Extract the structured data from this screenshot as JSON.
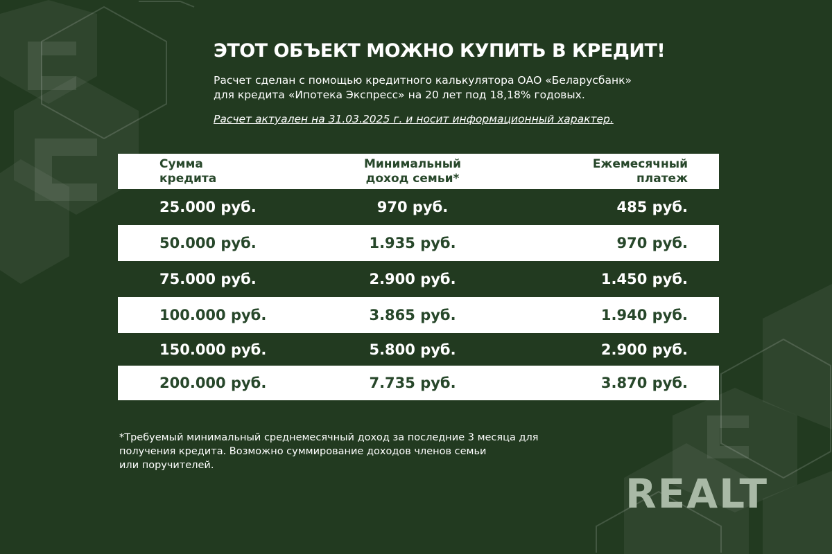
{
  "header": {
    "title": "ЭТОТ ОБЪЕКТ МОЖНО КУПИТЬ В КРЕДИТ!",
    "subtitle_line1": "Расчет сделан с помощью кредитного калькулятора ОАО «Беларусбанк»",
    "subtitle_line2": "для кредита «Ипотека Экспресс» на 20 лет под 18,18% годовых.",
    "note": "Расчет актуален на 31.03.2025 г. и носит информационный характер."
  },
  "table": {
    "columns": [
      {
        "line1": "Сумма",
        "line2": "кредита"
      },
      {
        "line1": "Минимальный",
        "line2": "доход семьи*"
      },
      {
        "line1": "Ежемесячный",
        "line2": "платеж"
      }
    ],
    "rows": [
      [
        "25.000 руб.",
        "970 руб.",
        "485 руб."
      ],
      [
        "50.000 руб.",
        "1.935 руб.",
        "970 руб."
      ],
      [
        "75.000 руб.",
        "2.900 руб.",
        "1.450 руб."
      ],
      [
        "100.000 руб.",
        "3.865 руб.",
        "1.940 руб."
      ],
      [
        "150.000 руб.",
        "5.800 руб.",
        "2.900 руб."
      ],
      [
        "200.000 руб.",
        "7.735 руб.",
        "3.870 руб."
      ]
    ]
  },
  "footnote": {
    "line1": "*Требуемый минимальный среднемесячный доход за последние 3 месяца для",
    "line2": "получения кредита. Возможно суммирование доходов членов семьи",
    "line3": "или поручителей."
  },
  "logo": "REALT",
  "colors": {
    "background": "#223a20",
    "text_dark": "#27472a",
    "white": "#ffffff"
  }
}
